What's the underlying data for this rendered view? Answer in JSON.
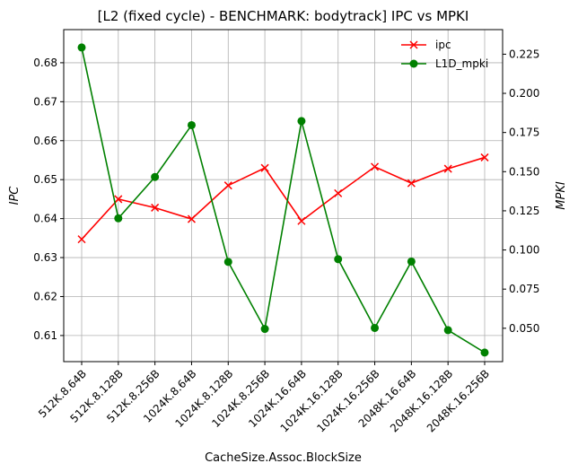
{
  "chart_data": {
    "type": "line",
    "title": "[L2 (fixed cycle) - BENCHMARK: bodytrack]  IPC vs MPKI",
    "xlabel": "CacheSize.Assoc.BlockSize",
    "ylabel_left": "IPC",
    "ylabel_right": "MPKI",
    "categories": [
      "512K.8.64B",
      "512K.8.128B",
      "512K.8.256B",
      "1024K.8.64B",
      "1024K.8.128B",
      "1024K.8.256B",
      "1024K.16.64B",
      "1024K.16.128B",
      "1024K.16.256B",
      "2048K.16.64B",
      "2048K.16.128B",
      "2048K.16.256B"
    ],
    "ylim_left": [
      0.6033,
      0.6885
    ],
    "ylim_right": [
      0.0287,
      0.2407
    ],
    "yticks_left": [
      0.61,
      0.62,
      0.63,
      0.64,
      0.65,
      0.66,
      0.67,
      0.68
    ],
    "yticks_left_labels": [
      "0.61",
      "0.62",
      "0.63",
      "0.64",
      "0.65",
      "0.66",
      "0.67",
      "0.68"
    ],
    "yticks_right": [
      0.05,
      0.075,
      0.1,
      0.125,
      0.15,
      0.175,
      0.2,
      0.225
    ],
    "yticks_right_labels": [
      "0.050",
      "0.075",
      "0.100",
      "0.125",
      "0.150",
      "0.175",
      "0.200",
      "0.225"
    ],
    "grid": true,
    "legend_position": "top-right",
    "series": [
      {
        "name": "ipc",
        "axis": "left",
        "color": "#ff0000",
        "marker": "x",
        "values": [
          0.6347,
          0.645,
          0.6428,
          0.6399,
          0.6485,
          0.653,
          0.6394,
          0.6465,
          0.6533,
          0.6491,
          0.6528,
          0.6557
        ]
      },
      {
        "name": "L1D_mpki",
        "axis": "right",
        "color": "#008000",
        "marker": "o",
        "values": [
          0.2293,
          0.1202,
          0.1466,
          0.1797,
          0.0924,
          0.0496,
          0.1823,
          0.0941,
          0.0502,
          0.0926,
          0.0488,
          0.0345
        ]
      }
    ]
  }
}
